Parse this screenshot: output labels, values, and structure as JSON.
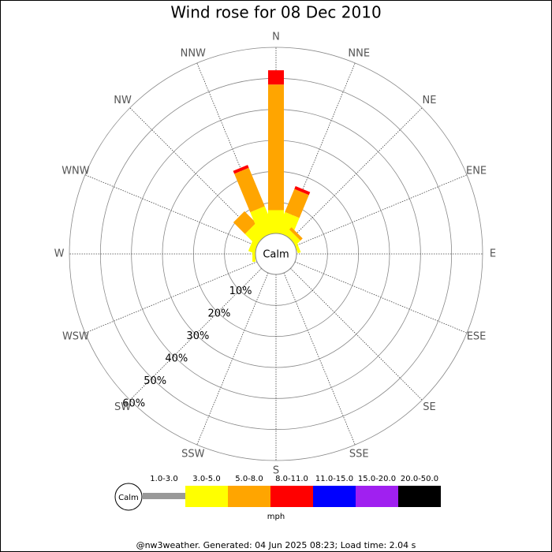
{
  "chart_data": {
    "type": "windrose",
    "title": "Wind rose for 08 Dec 2010",
    "categories": [
      "N",
      "NNE",
      "NE",
      "ENE",
      "E",
      "ESE",
      "SE",
      "SSE",
      "S",
      "SSW",
      "SW",
      "WSW",
      "W",
      "WNW",
      "NW",
      "NNW"
    ],
    "series": [
      {
        "name": "1.0-3.0",
        "color": "#999999",
        "values": [
          0,
          0,
          0,
          0,
          0,
          0,
          0,
          0,
          0,
          0,
          0,
          0,
          0,
          0,
          0,
          0
        ]
      },
      {
        "name": "3.0-5.0",
        "color": "#ffff00",
        "values": [
          7.5,
          7,
          2,
          1,
          0,
          0,
          0,
          0,
          0,
          0,
          0,
          0,
          1,
          2,
          5,
          9
        ]
      },
      {
        "name": "5.0-8.0",
        "color": "#ffa500",
        "values": [
          40.5,
          8,
          1,
          0,
          0,
          0,
          0,
          0,
          0,
          0,
          0,
          0,
          0,
          0,
          5.3,
          13.4
        ]
      },
      {
        "name": "8.0-11.0",
        "color": "#ff0000",
        "values": [
          4.6,
          1,
          0,
          0,
          0,
          0,
          0,
          0,
          0,
          0,
          0,
          0,
          0,
          0,
          0,
          1
        ]
      },
      {
        "name": "11.0-15.0",
        "color": "#0000ff",
        "values": [
          0,
          0,
          0,
          0,
          0,
          0,
          0,
          0,
          0,
          0,
          0,
          0,
          0,
          0,
          0,
          0
        ]
      },
      {
        "name": "15.0-20.0",
        "color": "#a020f0",
        "values": [
          0,
          0,
          0,
          0,
          0,
          0,
          0,
          0,
          0,
          0,
          0,
          0,
          0,
          0,
          0,
          0
        ]
      },
      {
        "name": "20.0-50.0",
        "color": "#000000",
        "values": [
          0,
          0,
          0,
          0,
          0,
          0,
          0,
          0,
          0,
          0,
          0,
          0,
          0,
          0,
          0,
          0
        ]
      }
    ],
    "ylim": [
      0,
      60
    ],
    "yticks": [
      {
        "value": 10,
        "label": "10%"
      },
      {
        "value": 20,
        "label": "20%"
      },
      {
        "value": 30,
        "label": "30%"
      },
      {
        "value": 40,
        "label": "40%"
      },
      {
        "value": 50,
        "label": "50%"
      },
      {
        "value": 60,
        "label": "60%"
      }
    ],
    "calm_label": "Calm",
    "legend_calm": "Calm",
    "units": "mph",
    "footer": "@nw3weather. Generated: 04 Jun 2025 08:23; Load time: 2.04 s"
  }
}
